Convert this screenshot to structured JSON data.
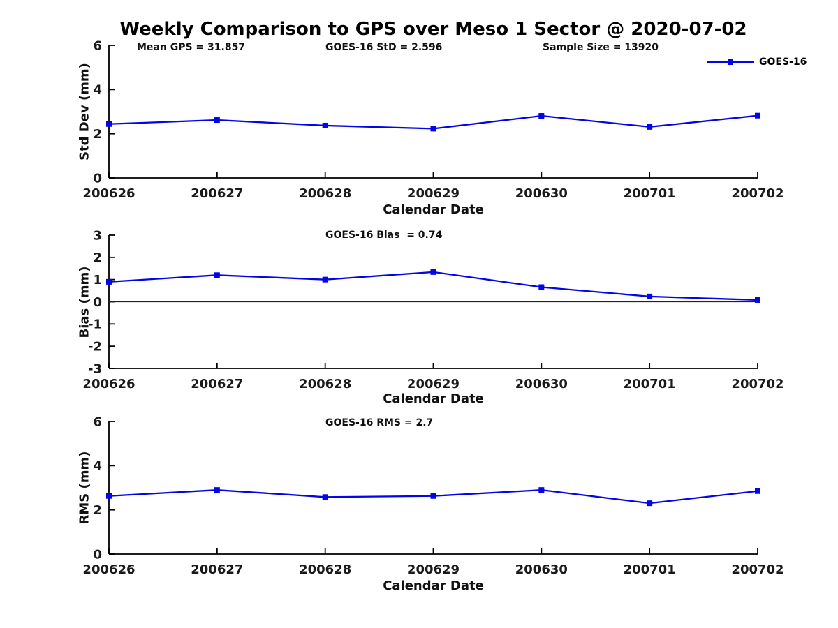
{
  "page": {
    "title": "Weekly Comparison to GPS over Meso 1 Sector @ 2020-07-02",
    "background": "#ffffff"
  },
  "colors": {
    "series": "#0404e8",
    "axis": "#000000",
    "tick_text": "#1a1a1a",
    "zero_line": "#222222"
  },
  "legend": {
    "series_label": "GOES-16"
  },
  "chart_data": [
    {
      "id": "stddev",
      "type": "line",
      "ylabel": "Std Dev (mm)",
      "xlabel": "Calendar Date",
      "ylim": [
        0,
        6
      ],
      "yticks": [
        0,
        2,
        4,
        6
      ],
      "categories": [
        "200626",
        "200627",
        "200628",
        "200629",
        "200630",
        "200701",
        "200702"
      ],
      "series": [
        {
          "name": "GOES-16",
          "marker": "square",
          "values": [
            2.44,
            2.62,
            2.37,
            2.23,
            2.81,
            2.31,
            2.82
          ]
        }
      ],
      "annotations": [
        {
          "text": "Mean GPS = 31.857"
        },
        {
          "text": "GOES-16 StD = 2.596"
        },
        {
          "text": "Sample Size = 13920"
        }
      ],
      "legend_position": "upper right",
      "grid": false,
      "zero_line": false
    },
    {
      "id": "bias",
      "type": "line",
      "ylabel": "Bias (mm)",
      "xlabel": "Calendar Date",
      "ylim": [
        -3,
        3
      ],
      "yticks": [
        -3,
        -2,
        -1,
        0,
        1,
        2,
        3
      ],
      "categories": [
        "200626",
        "200627",
        "200628",
        "200629",
        "200630",
        "200701",
        "200702"
      ],
      "series": [
        {
          "name": "GOES-16",
          "marker": "square",
          "values": [
            0.9,
            1.2,
            1.0,
            1.34,
            0.66,
            0.24,
            0.08
          ]
        }
      ],
      "annotations": [
        {
          "text": "GOES-16 Bias  = 0.74"
        }
      ],
      "legend_position": "none",
      "grid": false,
      "zero_line": true
    },
    {
      "id": "rms",
      "type": "line",
      "ylabel": "RMS (mm)",
      "xlabel": "Calendar Date",
      "ylim": [
        0,
        6
      ],
      "yticks": [
        0,
        2,
        4,
        6
      ],
      "categories": [
        "200626",
        "200627",
        "200628",
        "200629",
        "200630",
        "200701",
        "200702"
      ],
      "series": [
        {
          "name": "GOES-16",
          "marker": "square",
          "values": [
            2.63,
            2.9,
            2.58,
            2.63,
            2.9,
            2.3,
            2.85
          ]
        }
      ],
      "annotations": [
        {
          "text": "GOES-16 RMS = 2.7"
        }
      ],
      "legend_position": "none",
      "grid": false,
      "zero_line": false
    }
  ]
}
